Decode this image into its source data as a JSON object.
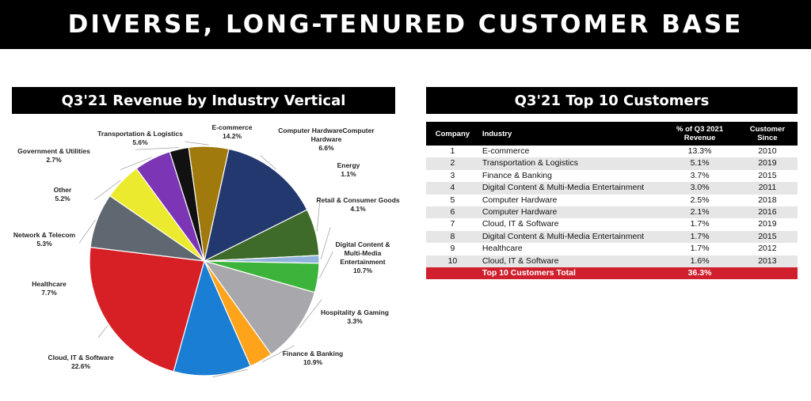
{
  "page_title": "DIVERSE, LONG-TENURED CUSTOMER BASE",
  "chart_header": "Q3'21 Revenue by Industry Vertical",
  "table_header": "Q3'21 Top 10 Customers",
  "chart_data": {
    "type": "pie",
    "slices": [
      {
        "label": "E-commerce",
        "value": 14.2,
        "display": "14.2%",
        "color": "#22386e"
      },
      {
        "label": "Computer HardwareComputer Hardware",
        "value": 6.6,
        "display": "6.6%",
        "color": "#3f6b2a"
      },
      {
        "label": "Energy",
        "value": 1.1,
        "display": "1.1%",
        "color": "#8fb3dc"
      },
      {
        "label": "Retail & Consumer Goods",
        "value": 4.1,
        "display": "4.1%",
        "color": "#3cb43c"
      },
      {
        "label": "Digital Content & Multi-Media Entertainment",
        "value": 10.7,
        "display": "10.7%",
        "color": "#a8a8ac"
      },
      {
        "label": "Hospitality & Gaming",
        "value": 3.3,
        "display": "3.3%",
        "color": "#ffa31a"
      },
      {
        "label": "Finance & Banking",
        "value": 10.9,
        "display": "10.9%",
        "color": "#1a7fd4"
      },
      {
        "label": "Cloud, IT & Software",
        "value": 22.6,
        "display": "22.6%",
        "color": "#d71f26"
      },
      {
        "label": "Healthcare",
        "value": 7.7,
        "display": "7.7%",
        "color": "#5f6770"
      },
      {
        "label": "Network & Telecom",
        "value": 5.3,
        "display": "5.3%",
        "color": "#ecea2e"
      },
      {
        "label": "Other",
        "value": 5.2,
        "display": "5.2%",
        "color": "#7b35b5"
      },
      {
        "label": "Government & Utilities",
        "value": 2.7,
        "display": "2.7%",
        "color": "#111111"
      },
      {
        "label": "Transportation & Logistics",
        "value": 5.6,
        "display": "5.6%",
        "color": "#a07a0c"
      }
    ]
  },
  "table": {
    "columns": [
      "Company",
      "Industry",
      "% of Q3 2021 Revenue",
      "Customer Since"
    ],
    "rows": [
      {
        "company": "1",
        "industry": "E-commerce",
        "pct": "13.3%",
        "since": "2010"
      },
      {
        "company": "2",
        "industry": "Transportation & Logistics",
        "pct": "5.1%",
        "since": "2019"
      },
      {
        "company": "3",
        "industry": "Finance & Banking",
        "pct": "3.7%",
        "since": "2015"
      },
      {
        "company": "4",
        "industry": "Digital Content & Multi-Media Entertainment",
        "pct": "3.0%",
        "since": "2011"
      },
      {
        "company": "5",
        "industry": "Computer Hardware",
        "pct": "2.5%",
        "since": "2018"
      },
      {
        "company": "6",
        "industry": "Computer Hardware",
        "pct": "2.1%",
        "since": "2016"
      },
      {
        "company": "7",
        "industry": "Cloud,  IT & Software",
        "pct": "1.7%",
        "since": "2019"
      },
      {
        "company": "8",
        "industry": "Digital Content & Multi-Media Entertainment",
        "pct": "1.7%",
        "since": "2015"
      },
      {
        "company": "9",
        "industry": "Healthcare",
        "pct": "1.7%",
        "since": "2012"
      },
      {
        "company": "10",
        "industry": "Cloud,  IT & Software",
        "pct": "1.6%",
        "since": "2013"
      }
    ],
    "total": {
      "label": "Top 10 Customers Total",
      "pct": "36.3%"
    }
  }
}
